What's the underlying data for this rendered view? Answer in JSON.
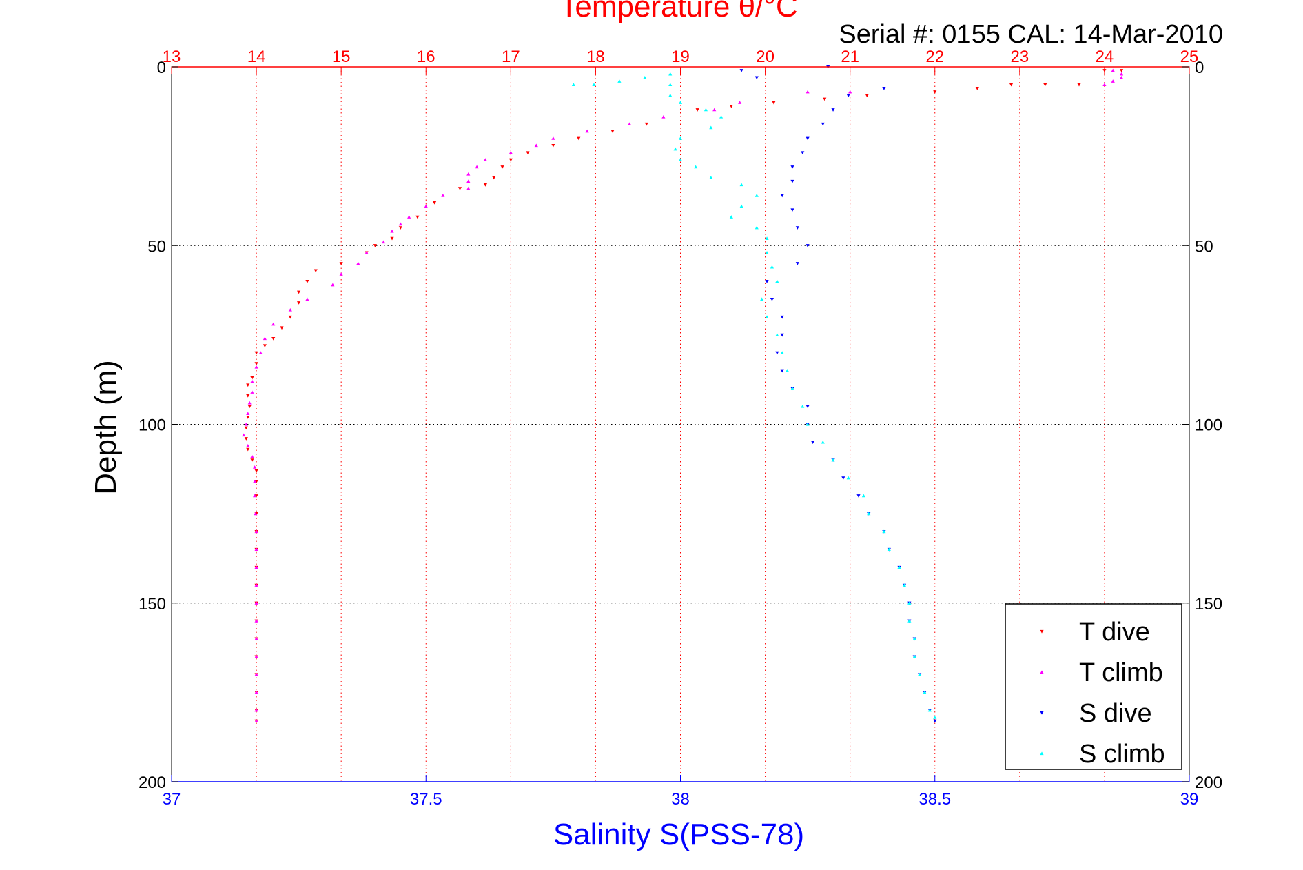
{
  "chart_data": {
    "type": "scatter",
    "title": "Temperature θ/°C",
    "subtitle": "Serial #: 0155  CAL: 14-Mar-2010",
    "ylabel": "Depth (m)",
    "xlabel_bottom": "Salinity S(PSS-78)",
    "ylim": [
      0,
      200
    ],
    "y_reversed": true,
    "y_ticks": [
      "0",
      "50",
      "100",
      "150",
      "200"
    ],
    "x_top": {
      "label": "Temperature θ/°C",
      "lim": [
        13,
        25
      ],
      "ticks": [
        "13",
        "14",
        "15",
        "16",
        "17",
        "18",
        "19",
        "20",
        "21",
        "22",
        "23",
        "24",
        "25"
      ],
      "color": "#ff0000"
    },
    "x_bottom": {
      "label": "Salinity S(PSS-78)",
      "lim": [
        37,
        39
      ],
      "ticks": [
        "37",
        "37.5",
        "38",
        "38.5",
        "39"
      ],
      "color": "#0000ff"
    },
    "grid": true,
    "legend_position": "bottom-right",
    "series": [
      {
        "name": "T dive",
        "axis": "top",
        "color": "#ff0000",
        "marker": "triangle-down",
        "points": [
          [
            24.2,
            1
          ],
          [
            24.0,
            1
          ],
          [
            23.7,
            5
          ],
          [
            23.3,
            5
          ],
          [
            22.9,
            5
          ],
          [
            22.5,
            6
          ],
          [
            22.0,
            7
          ],
          [
            21.2,
            8
          ],
          [
            20.7,
            9
          ],
          [
            20.1,
            10
          ],
          [
            19.6,
            11
          ],
          [
            19.2,
            12
          ],
          [
            18.6,
            16
          ],
          [
            18.2,
            18
          ],
          [
            17.8,
            20
          ],
          [
            17.5,
            22
          ],
          [
            17.2,
            24
          ],
          [
            17.0,
            26
          ],
          [
            16.9,
            28
          ],
          [
            16.8,
            31
          ],
          [
            16.7,
            33
          ],
          [
            16.4,
            34
          ],
          [
            16.1,
            38
          ],
          [
            15.9,
            42
          ],
          [
            15.7,
            45
          ],
          [
            15.6,
            48
          ],
          [
            15.4,
            50
          ],
          [
            15.3,
            52
          ],
          [
            15.0,
            55
          ],
          [
            14.7,
            57
          ],
          [
            14.6,
            60
          ],
          [
            14.5,
            63
          ],
          [
            14.5,
            66
          ],
          [
            14.4,
            70
          ],
          [
            14.3,
            73
          ],
          [
            14.2,
            76
          ],
          [
            14.1,
            78
          ],
          [
            14.0,
            80
          ],
          [
            14.0,
            83
          ],
          [
            13.95,
            87
          ],
          [
            13.9,
            89
          ],
          [
            13.9,
            92
          ],
          [
            13.92,
            95
          ],
          [
            13.9,
            98
          ],
          [
            13.88,
            101
          ],
          [
            13.88,
            104
          ],
          [
            13.9,
            107
          ],
          [
            13.95,
            110
          ],
          [
            14.0,
            113
          ],
          [
            14.0,
            116
          ],
          [
            14.0,
            120
          ],
          [
            14.0,
            125
          ],
          [
            14.0,
            130
          ],
          [
            14.0,
            135
          ],
          [
            14.0,
            140
          ],
          [
            14.0,
            145
          ],
          [
            14.0,
            150
          ],
          [
            14.0,
            155
          ],
          [
            14.0,
            160
          ],
          [
            14.0,
            165
          ],
          [
            14.0,
            170
          ],
          [
            14.0,
            175
          ],
          [
            14.0,
            180
          ],
          [
            14.0,
            183
          ]
        ]
      },
      {
        "name": "T climb",
        "axis": "top",
        "color": "#ff00ff",
        "marker": "triangle-up",
        "points": [
          [
            24.1,
            1
          ],
          [
            24.2,
            2
          ],
          [
            24.2,
            3
          ],
          [
            24.1,
            4
          ],
          [
            24.0,
            5
          ],
          [
            21.0,
            7
          ],
          [
            20.5,
            7
          ],
          [
            19.7,
            10
          ],
          [
            19.4,
            12
          ],
          [
            18.8,
            14
          ],
          [
            18.4,
            16
          ],
          [
            17.9,
            18
          ],
          [
            17.5,
            20
          ],
          [
            17.3,
            22
          ],
          [
            17.0,
            24
          ],
          [
            16.7,
            26
          ],
          [
            16.6,
            28
          ],
          [
            16.5,
            30
          ],
          [
            16.5,
            32
          ],
          [
            16.5,
            34
          ],
          [
            16.2,
            36
          ],
          [
            16.0,
            39
          ],
          [
            15.8,
            42
          ],
          [
            15.7,
            44
          ],
          [
            15.6,
            46
          ],
          [
            15.5,
            49
          ],
          [
            15.3,
            52
          ],
          [
            15.2,
            55
          ],
          [
            15.0,
            58
          ],
          [
            14.9,
            61
          ],
          [
            14.6,
            65
          ],
          [
            14.4,
            68
          ],
          [
            14.2,
            72
          ],
          [
            14.1,
            76
          ],
          [
            14.05,
            80
          ],
          [
            14.0,
            84
          ],
          [
            13.95,
            88
          ],
          [
            13.95,
            91
          ],
          [
            13.92,
            94
          ],
          [
            13.9,
            97
          ],
          [
            13.88,
            100
          ],
          [
            13.85,
            103
          ],
          [
            13.9,
            106
          ],
          [
            13.95,
            109
          ],
          [
            13.98,
            112
          ],
          [
            13.98,
            116
          ],
          [
            13.98,
            120
          ],
          [
            13.99,
            125
          ],
          [
            14.0,
            130
          ],
          [
            14.0,
            135
          ],
          [
            14.0,
            140
          ],
          [
            14.0,
            145
          ],
          [
            14.0,
            150
          ],
          [
            14.0,
            155
          ],
          [
            14.0,
            160
          ],
          [
            14.0,
            165
          ],
          [
            14.0,
            170
          ],
          [
            14.0,
            175
          ],
          [
            14.0,
            180
          ],
          [
            14.0,
            183
          ]
        ]
      },
      {
        "name": "S dive",
        "axis": "bottom",
        "color": "#0000ff",
        "marker": "triangle-down",
        "points": [
          [
            38.12,
            1
          ],
          [
            38.15,
            3
          ],
          [
            38.29,
            0
          ],
          [
            38.4,
            6
          ],
          [
            38.33,
            8
          ],
          [
            38.3,
            12
          ],
          [
            38.28,
            16
          ],
          [
            38.25,
            20
          ],
          [
            38.24,
            24
          ],
          [
            38.22,
            28
          ],
          [
            38.22,
            32
          ],
          [
            38.2,
            36
          ],
          [
            38.22,
            40
          ],
          [
            38.23,
            45
          ],
          [
            38.25,
            50
          ],
          [
            38.23,
            55
          ],
          [
            38.17,
            60
          ],
          [
            38.18,
            65
          ],
          [
            38.2,
            70
          ],
          [
            38.2,
            75
          ],
          [
            38.19,
            80
          ],
          [
            38.2,
            85
          ],
          [
            38.22,
            90
          ],
          [
            38.25,
            95
          ],
          [
            38.25,
            100
          ],
          [
            38.26,
            105
          ],
          [
            38.3,
            110
          ],
          [
            38.32,
            115
          ],
          [
            38.35,
            120
          ],
          [
            38.37,
            125
          ],
          [
            38.4,
            130
          ],
          [
            38.41,
            135
          ],
          [
            38.43,
            140
          ],
          [
            38.44,
            145
          ],
          [
            38.45,
            150
          ],
          [
            38.45,
            155
          ],
          [
            38.46,
            160
          ],
          [
            38.46,
            165
          ],
          [
            38.47,
            170
          ],
          [
            38.48,
            175
          ],
          [
            38.49,
            180
          ],
          [
            38.5,
            183
          ]
        ]
      },
      {
        "name": "S climb",
        "axis": "bottom",
        "color": "#00ffff",
        "marker": "triangle-up",
        "points": [
          [
            37.79,
            5
          ],
          [
            37.83,
            5
          ],
          [
            37.88,
            4
          ],
          [
            37.93,
            3
          ],
          [
            37.98,
            2
          ],
          [
            37.98,
            5
          ],
          [
            37.98,
            8
          ],
          [
            38.0,
            10
          ],
          [
            38.05,
            12
          ],
          [
            38.08,
            14
          ],
          [
            38.06,
            17
          ],
          [
            38.0,
            20
          ],
          [
            37.99,
            23
          ],
          [
            38.0,
            26
          ],
          [
            38.03,
            28
          ],
          [
            38.06,
            31
          ],
          [
            38.12,
            33
          ],
          [
            38.15,
            36
          ],
          [
            38.12,
            39
          ],
          [
            38.1,
            42
          ],
          [
            38.15,
            45
          ],
          [
            38.17,
            48
          ],
          [
            38.17,
            52
          ],
          [
            38.18,
            56
          ],
          [
            38.19,
            60
          ],
          [
            38.16,
            65
          ],
          [
            38.17,
            70
          ],
          [
            38.19,
            75
          ],
          [
            38.2,
            80
          ],
          [
            38.21,
            85
          ],
          [
            38.22,
            90
          ],
          [
            38.24,
            95
          ],
          [
            38.25,
            100
          ],
          [
            38.28,
            105
          ],
          [
            38.3,
            110
          ],
          [
            38.33,
            115
          ],
          [
            38.36,
            120
          ],
          [
            38.37,
            125
          ],
          [
            38.4,
            130
          ],
          [
            38.41,
            135
          ],
          [
            38.43,
            140
          ],
          [
            38.44,
            145
          ],
          [
            38.45,
            150
          ],
          [
            38.45,
            155
          ],
          [
            38.46,
            160
          ],
          [
            38.46,
            165
          ],
          [
            38.47,
            170
          ],
          [
            38.48,
            175
          ],
          [
            38.49,
            180
          ],
          [
            38.5,
            182
          ]
        ]
      }
    ]
  }
}
